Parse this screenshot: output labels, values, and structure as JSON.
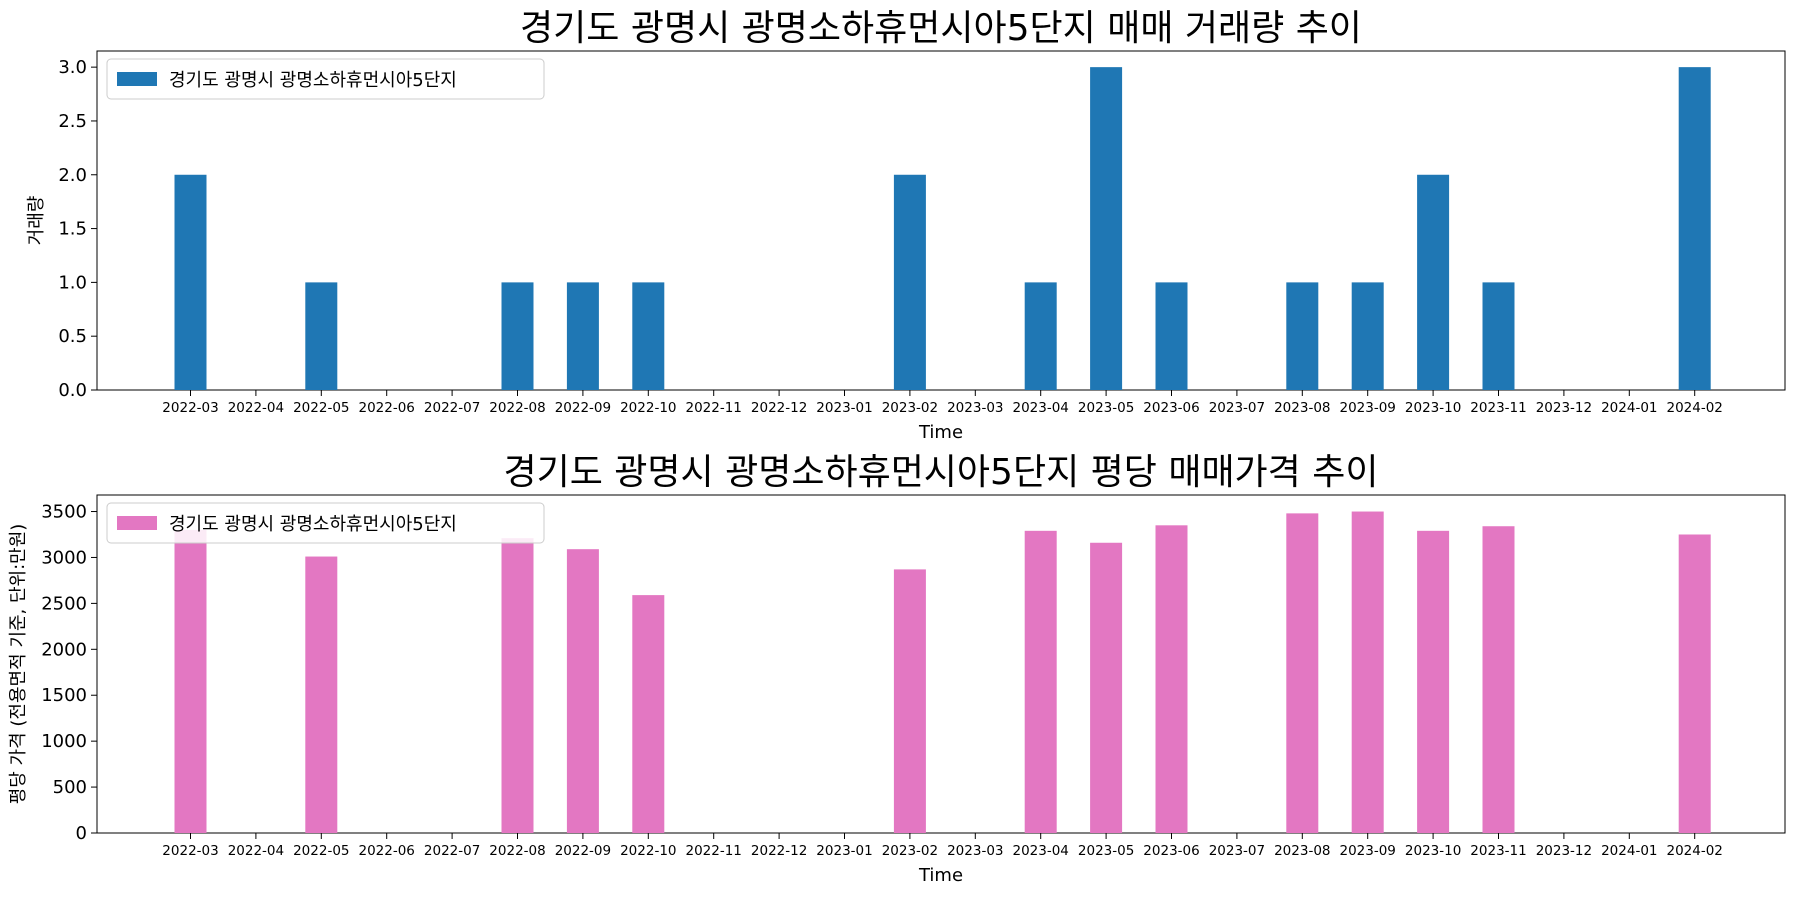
{
  "chart_data": [
    {
      "type": "bar",
      "title": "경기도 광명시 광명소하휴먼시아5단지 매매 거래량 추이",
      "xlabel": "Time",
      "ylabel": "거래량",
      "legend": "경기도 광명시 광명소하휴먼시아5단지",
      "legend_position": "top-left",
      "color": "#1f77b4",
      "ylim": [
        0,
        3.15
      ],
      "yticks": [
        0,
        0.5,
        1.0,
        1.5,
        2.0,
        2.5,
        3.0
      ],
      "ytick_labels": [
        "0.0",
        "0.5",
        "1.0",
        "1.5",
        "2.0",
        "2.5",
        "3.0"
      ],
      "categories": [
        "2022-03",
        "2022-04",
        "2022-05",
        "2022-06",
        "2022-07",
        "2022-08",
        "2022-09",
        "2022-10",
        "2022-11",
        "2022-12",
        "2023-01",
        "2023-02",
        "2023-03",
        "2023-04",
        "2023-05",
        "2023-06",
        "2023-07",
        "2023-08",
        "2023-09",
        "2023-10",
        "2023-11",
        "2023-12",
        "2024-01",
        "2024-02"
      ],
      "values": [
        2,
        0,
        1,
        0,
        0,
        1,
        1,
        1,
        0,
        0,
        0,
        2,
        0,
        1,
        3,
        1,
        0,
        1,
        1,
        2,
        1,
        0,
        0,
        3
      ]
    },
    {
      "type": "bar",
      "title": "경기도 광명시 광명소하휴먼시아5단지 평당 매매가격 추이",
      "xlabel": "Time",
      "ylabel": "평당 가격 (전용면적 기준, 단위:만원)",
      "legend": "경기도 광명시 광명소하휴먼시아5단지",
      "legend_position": "top-left",
      "color": "#e377c2",
      "ylim": [
        0,
        3680
      ],
      "yticks": [
        0,
        500,
        1000,
        1500,
        2000,
        2500,
        3000,
        3500
      ],
      "ytick_labels": [
        "0",
        "500",
        "1000",
        "1500",
        "2000",
        "2500",
        "3000",
        "3500"
      ],
      "categories": [
        "2022-03",
        "2022-04",
        "2022-05",
        "2022-06",
        "2022-07",
        "2022-08",
        "2022-09",
        "2022-10",
        "2022-11",
        "2022-12",
        "2023-01",
        "2023-02",
        "2023-03",
        "2023-04",
        "2023-05",
        "2023-06",
        "2023-07",
        "2023-08",
        "2023-09",
        "2023-10",
        "2023-11",
        "2023-12",
        "2024-01",
        "2024-02"
      ],
      "values": [
        3300,
        0,
        3010,
        0,
        0,
        3210,
        3090,
        2590,
        0,
        0,
        0,
        2870,
        0,
        3290,
        3160,
        3350,
        0,
        3480,
        3500,
        3290,
        3340,
        0,
        0,
        3250
      ]
    }
  ]
}
